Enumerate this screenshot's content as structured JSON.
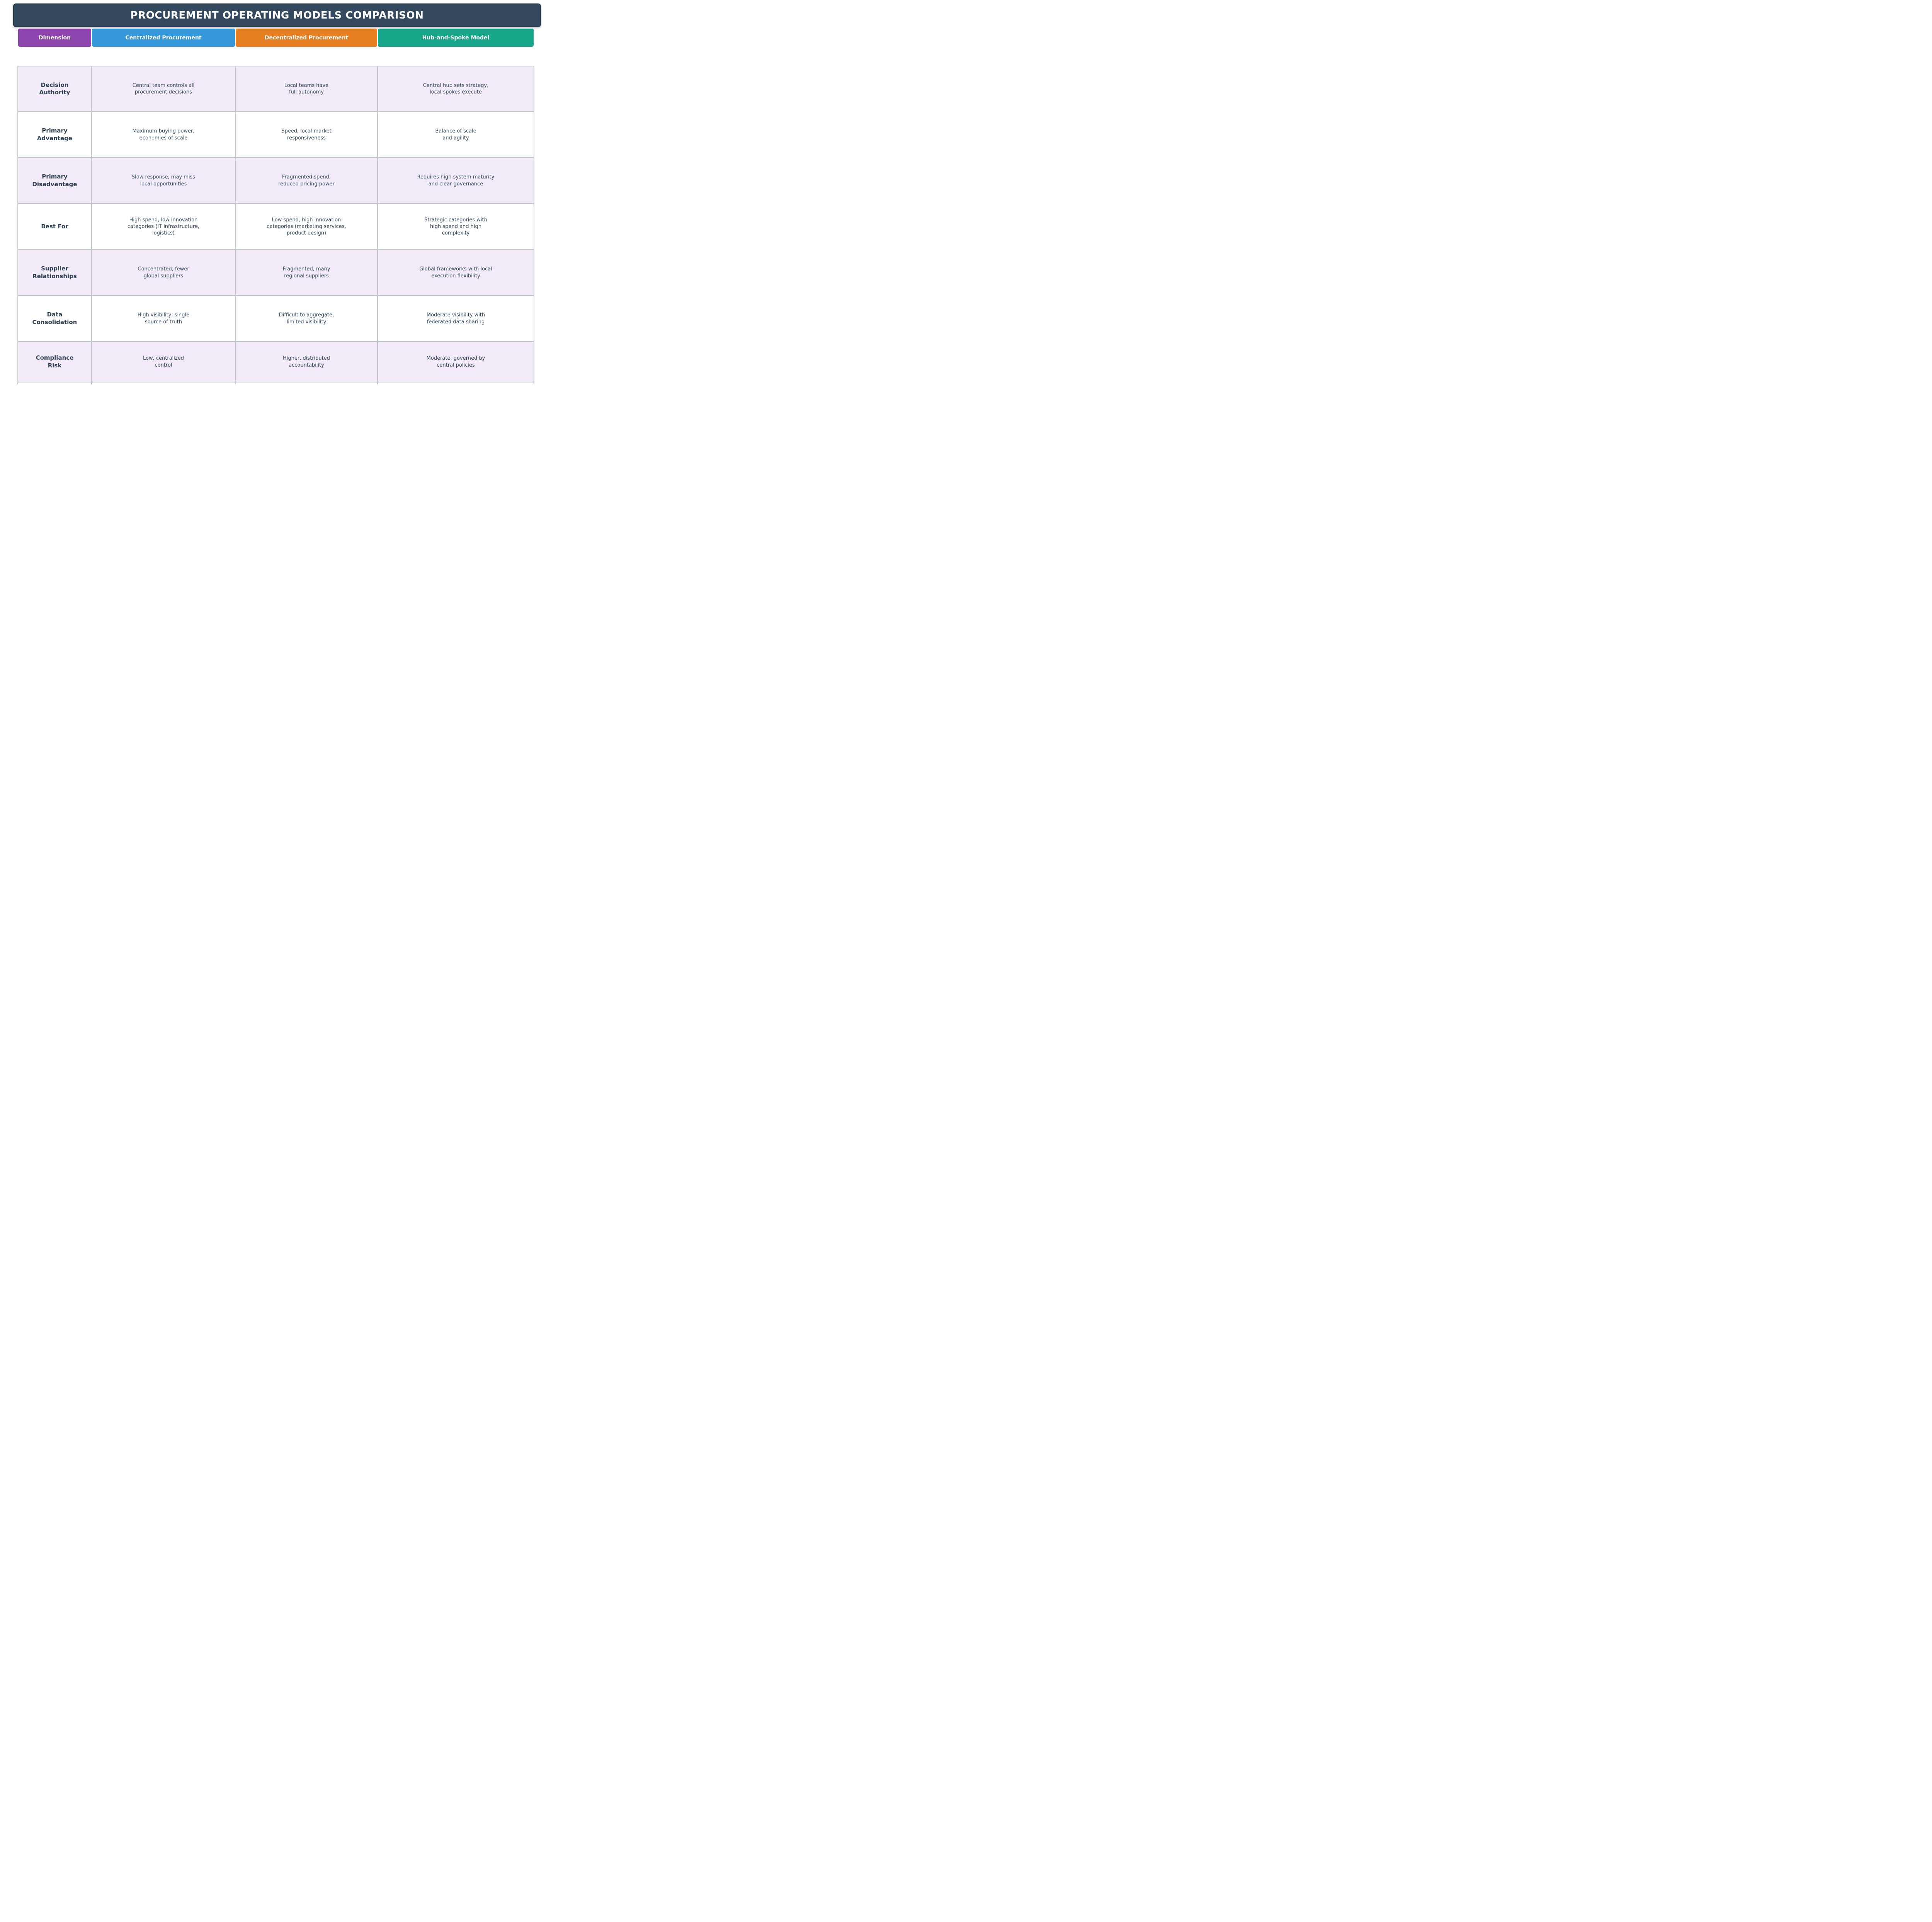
{
  "title": "PROCUREMENT OPERATING MODELS COMPARISON",
  "colors": {
    "title_bar": "#34495E",
    "title_border": "#2A3949",
    "header_dimension": "#8E44AD",
    "header_centralized": "#3498DB",
    "header_decentralized": "#E67E22",
    "header_hub": "#17A589",
    "row_alt_background": "#F3EBF7",
    "grid_line": "#C1C7CA",
    "cell_text": "#34495E",
    "label_text": "#2E4053"
  },
  "header": {
    "dimension": "Dimension",
    "centralized": "Centralized Procurement",
    "decentralized": "Decentralized Procurement",
    "hub": "Hub-and-Spoke Model"
  },
  "table": {
    "rows": [
      {
        "dimension": "Decision\nAuthority",
        "centralized": "Central team controls all\nprocurement decisions",
        "decentralized": "Local teams have\nfull autonomy",
        "hub": "Central hub sets strategy,\nlocal spokes execute"
      },
      {
        "dimension": "Primary\nAdvantage",
        "centralized": "Maximum buying power,\neconomies of scale",
        "decentralized": "Speed, local market\nresponsiveness",
        "hub": "Balance of scale\nand agility"
      },
      {
        "dimension": "Primary\nDisadvantage",
        "centralized": "Slow response, may miss\nlocal opportunities",
        "decentralized": "Fragmented spend,\nreduced pricing power",
        "hub": "Requires high system maturity\nand clear governance"
      },
      {
        "dimension": "Best For",
        "centralized": "High spend, low innovation\ncategories (IT infrastructure,\nlogistics)",
        "decentralized": "Low spend, high innovation\ncategories (marketing services,\nproduct design)",
        "hub": "Strategic categories with\nhigh spend and high\ncomplexity"
      },
      {
        "dimension": "Supplier\nRelationships",
        "centralized": "Concentrated, fewer\nglobal suppliers",
        "decentralized": "Fragmented, many\nregional suppliers",
        "hub": "Global frameworks with local\nexecution flexibility"
      },
      {
        "dimension": "Data\nConsolidation",
        "centralized": "High visibility, single\nsource of truth",
        "decentralized": "Difficult to aggregate,\nlimited visibility",
        "hub": "Moderate visibility with\nfederated data sharing"
      },
      {
        "dimension": "Compliance\nRisk",
        "centralized": "Low, centralized\ncontrol",
        "decentralized": "Higher, distributed\naccountability",
        "hub": "Moderate, governed by\ncentral policies"
      }
    ],
    "partial_row": {
      "dimension": "",
      "centralized": "",
      "decentralized": "",
      "hub": ""
    }
  },
  "chart_data": {
    "type": "table",
    "title": "PROCUREMENT OPERATING MODELS COMPARISON",
    "columns": [
      "Dimension",
      "Centralized Procurement",
      "Decentralized Procurement",
      "Hub-and-Spoke Model"
    ],
    "rows": [
      [
        "Decision Authority",
        "Central team controls all procurement decisions",
        "Local teams have full autonomy",
        "Central hub sets strategy, local spokes execute"
      ],
      [
        "Primary Advantage",
        "Maximum buying power, economies of scale",
        "Speed, local market responsiveness",
        "Balance of scale and agility"
      ],
      [
        "Primary Disadvantage",
        "Slow response, may miss local opportunities",
        "Fragmented spend, reduced pricing power",
        "Requires high system maturity and clear governance"
      ],
      [
        "Best For",
        "High spend, low innovation categories (IT infrastructure, logistics)",
        "Low spend, high innovation categories (marketing services, product design)",
        "Strategic categories with high spend and high complexity"
      ],
      [
        "Supplier Relationships",
        "Concentrated, fewer global suppliers",
        "Fragmented, many regional suppliers",
        "Global frameworks with local execution flexibility"
      ],
      [
        "Data Consolidation",
        "High visibility, single source of truth",
        "Difficult to aggregate, limited visibility",
        "Moderate visibility with federated data sharing"
      ],
      [
        "Compliance Risk",
        "Low, centralized control",
        "Higher, distributed accountability",
        "Moderate, governed by central policies"
      ]
    ],
    "layout": {
      "header_colors": [
        "#8E44AD",
        "#3498DB",
        "#E67E22",
        "#17A589"
      ],
      "row_stripe_colors": [
        "#F3EBF7",
        "#FFFFFF"
      ],
      "grid": true
    }
  }
}
